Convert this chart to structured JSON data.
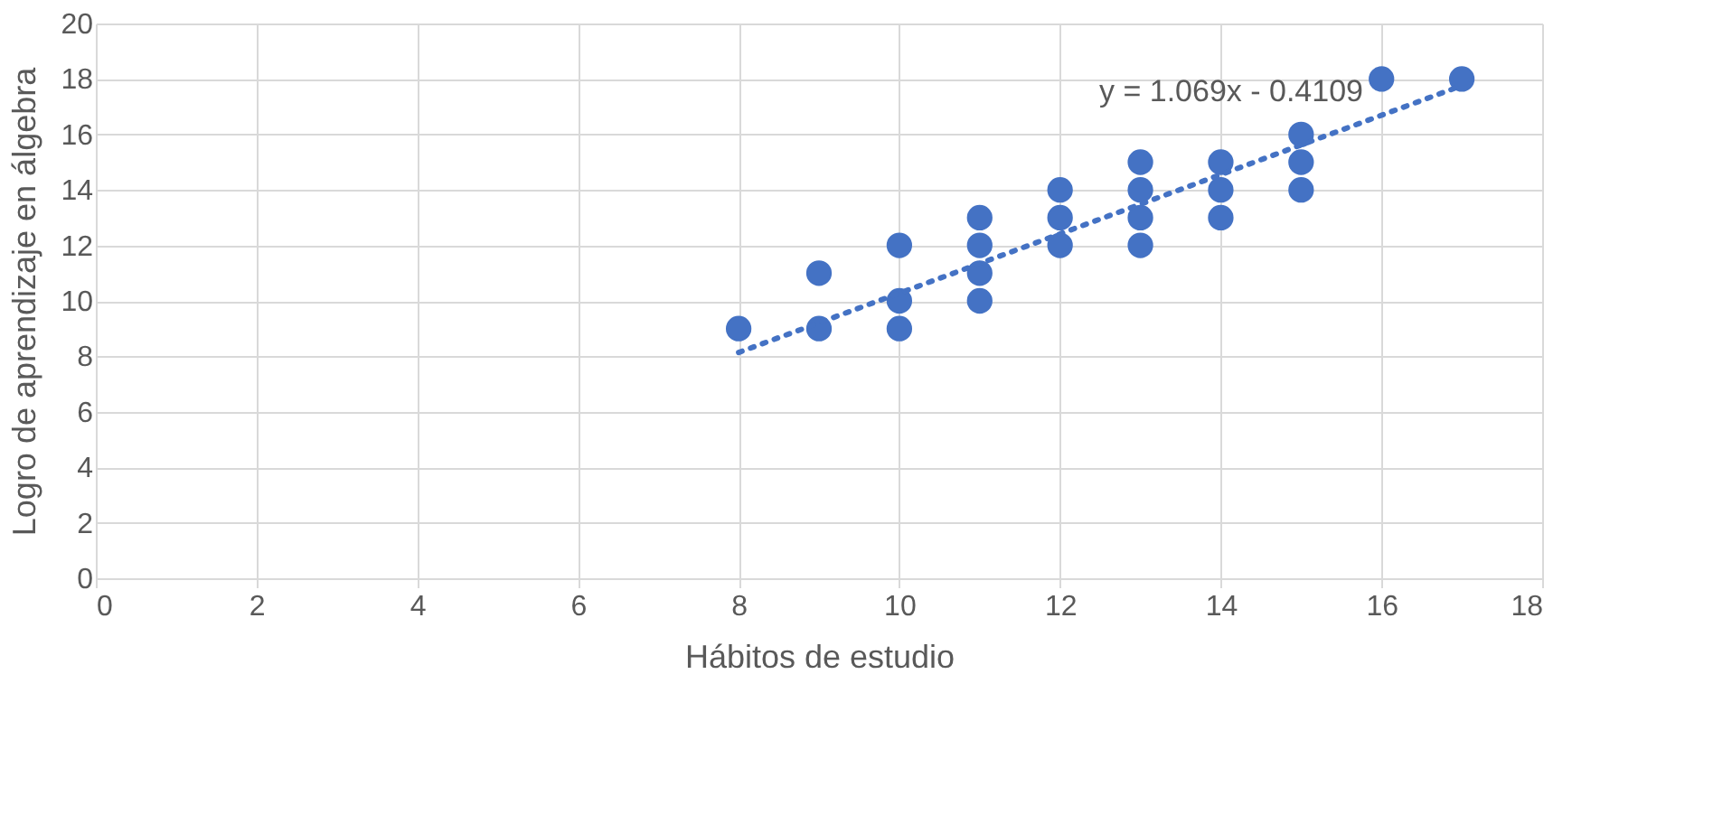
{
  "chart_data": {
    "type": "scatter",
    "xlabel": "Hábitos de estudio",
    "ylabel": "Logro de aprendizaje en álgebra",
    "xlim": [
      0,
      18
    ],
    "xticks": [
      0,
      2,
      4,
      6,
      8,
      10,
      12,
      14,
      16,
      18
    ],
    "ylim": [
      0,
      20
    ],
    "yticks": [
      0,
      2,
      4,
      6,
      8,
      10,
      12,
      14,
      16,
      18,
      20
    ],
    "grid": true,
    "marker": "circle",
    "series": [
      {
        "color": "#4472c4",
        "x": [
          8,
          9,
          9,
          10,
          10,
          10,
          11,
          11,
          11,
          11,
          12,
          12,
          12,
          13,
          13,
          13,
          13,
          14,
          14,
          14,
          15,
          15,
          15,
          16,
          17
        ],
        "values": [
          9,
          11,
          9,
          12,
          10,
          9,
          13,
          12,
          11,
          10,
          14,
          13,
          12,
          15,
          14,
          13,
          12,
          15,
          14,
          13,
          16,
          15,
          14,
          18,
          18
        ]
      },
      {
        "type": "line",
        "color": "#4472c4",
        "line_style": "dotted",
        "marker": "none",
        "x": [
          8,
          17
        ],
        "values": [
          8.14,
          17.76
        ]
      }
    ],
    "annotations": [
      "y = 1.069x - 0.4109"
    ]
  }
}
